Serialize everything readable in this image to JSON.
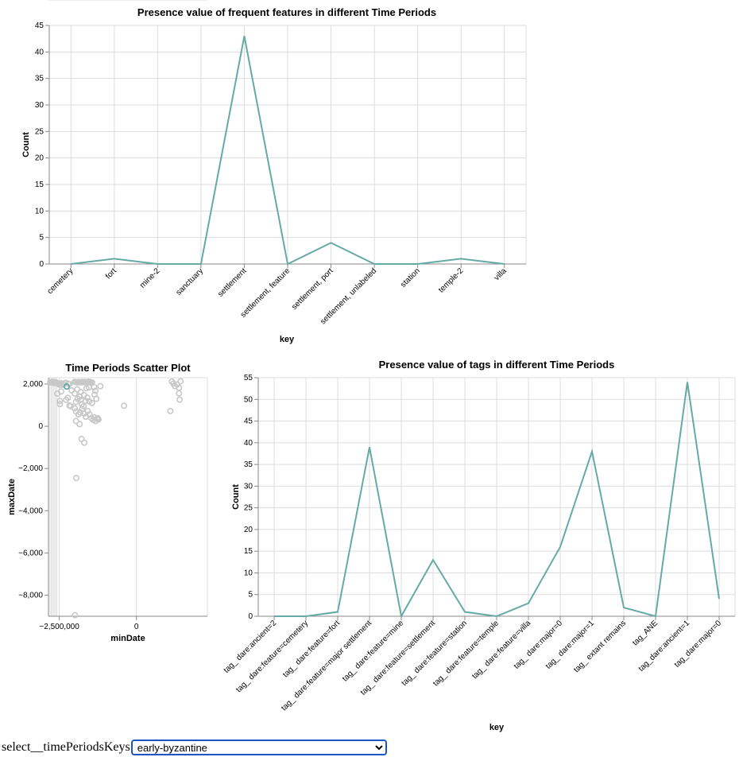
{
  "charts": {
    "features": {
      "type": "line",
      "title": "Presence value of frequent features in different Time Periods",
      "xlabel": "key",
      "ylabel": "Count",
      "categories": [
        "cemetery",
        "fort",
        "mine-2",
        "sanctuary",
        "settlement",
        "settlement, feature",
        "settlement, port",
        "settlement, unlabeled",
        "station",
        "temple-2",
        "villa"
      ],
      "values": [
        0,
        1,
        0,
        0,
        43,
        0,
        4,
        0,
        0,
        1,
        0
      ],
      "ylim": [
        0,
        45
      ],
      "yticks": [
        0,
        5,
        10,
        15,
        20,
        25,
        30,
        35,
        40,
        45
      ],
      "color": "#66aaa6",
      "grid": true
    },
    "scatter": {
      "type": "scatter",
      "title": "Time Periods Scatter Plot",
      "xlabel": "minDate",
      "ylabel": "maxDate",
      "xticks": [
        {
          "v": -2500000,
          "label": "−2,500,000"
        },
        {
          "v": 0,
          "label": "0"
        }
      ],
      "yticks": [
        {
          "v": 2000,
          "label": "2,000"
        },
        {
          "v": 0,
          "label": "0"
        },
        {
          "v": -2000,
          "label": "−2,000"
        },
        {
          "v": -4000,
          "label": "−4,000"
        },
        {
          "v": -6000,
          "label": "−6,000"
        },
        {
          "v": -8000,
          "label": "−8,000"
        }
      ],
      "xlim": [
        -2850000,
        2300000
      ],
      "ylim": [
        -9000,
        2300
      ],
      "color": "#c8c8c8",
      "highlight_color": "#66aaa6",
      "grid": true,
      "points": [
        [
          -2790000,
          2080
        ],
        [
          -2770000,
          2090
        ],
        [
          -2740000,
          2070
        ],
        [
          -2710000,
          2100
        ],
        [
          -2690000,
          2050
        ],
        [
          -2660000,
          2090
        ],
        [
          -2630000,
          2060
        ],
        [
          -2600000,
          2080
        ],
        [
          -2560000,
          2030
        ],
        [
          -2520000,
          2000
        ],
        [
          -2490000,
          1970
        ],
        [
          -2450000,
          2040
        ],
        [
          -2420000,
          1960
        ],
        [
          -2380000,
          2010
        ],
        [
          -2340000,
          1990
        ],
        [
          -2300000,
          2060
        ],
        [
          -2260000,
          1880
        ],
        [
          -2210000,
          2020
        ],
        [
          -2170000,
          2000
        ],
        [
          -2000000,
          2100
        ],
        [
          -1960000,
          2090
        ],
        [
          -1920000,
          2070
        ],
        [
          -1880000,
          2100
        ],
        [
          -1840000,
          2090
        ],
        [
          -1800000,
          2080
        ],
        [
          -1760000,
          2100
        ],
        [
          -1720000,
          2090
        ],
        [
          -1680000,
          2100
        ],
        [
          -1640000,
          2070
        ],
        [
          -1600000,
          2090
        ],
        [
          -1560000,
          2110
        ],
        [
          -1520000,
          2100
        ],
        [
          -1480000,
          2090
        ],
        [
          -1440000,
          2080
        ],
        [
          -2560000,
          1550
        ],
        [
          -2440000,
          1650
        ],
        [
          -2220000,
          1350
        ],
        [
          -2100000,
          1700
        ],
        [
          -2000000,
          1550
        ],
        [
          -1920000,
          1750
        ],
        [
          -1800000,
          1620
        ],
        [
          -1700000,
          1480
        ],
        [
          -1620000,
          1800
        ],
        [
          -1540000,
          1840
        ],
        [
          -2480000,
          1200
        ],
        [
          -2480000,
          1050
        ],
        [
          -2280000,
          1250
        ],
        [
          -2170000,
          980
        ],
        [
          -2130000,
          950
        ],
        [
          -1960000,
          1150
        ],
        [
          -1900000,
          1300
        ],
        [
          -1840000,
          1400
        ],
        [
          -1800000,
          1250
        ],
        [
          -1770000,
          1050
        ],
        [
          -1710000,
          950
        ],
        [
          -1650000,
          1200
        ],
        [
          -1590000,
          1350
        ],
        [
          -1530000,
          1180
        ],
        [
          -1440000,
          1100
        ],
        [
          -1360000,
          1500
        ],
        [
          -1300000,
          1300
        ],
        [
          -2000000,
          850
        ],
        [
          -1960000,
          700
        ],
        [
          -1880000,
          560
        ],
        [
          -1820000,
          650
        ],
        [
          -1760000,
          820
        ],
        [
          -1700000,
          600
        ],
        [
          -1640000,
          450
        ],
        [
          -1580000,
          720
        ],
        [
          -1520000,
          560
        ],
        [
          -1460000,
          380
        ],
        [
          -1400000,
          300
        ],
        [
          -1360000,
          420
        ],
        [
          -1320000,
          250
        ],
        [
          -1280000,
          350
        ],
        [
          -1250000,
          380
        ],
        [
          -1230000,
          320
        ],
        [
          -1960000,
          250
        ],
        [
          -1840000,
          100
        ],
        [
          -1780000,
          -600
        ],
        [
          -1690000,
          -780
        ],
        [
          -1950000,
          -2450
        ],
        [
          -1990000,
          -8950
        ],
        [
          -1170000,
          1900
        ],
        [
          -1330000,
          1680
        ],
        [
          -1370000,
          1850
        ],
        [
          -400000,
          970
        ],
        [
          1150000,
          2120
        ],
        [
          1200000,
          2020
        ],
        [
          1250000,
          1900
        ],
        [
          1320000,
          1980
        ],
        [
          1380000,
          1560
        ],
        [
          1400000,
          1260
        ],
        [
          1430000,
          2130
        ],
        [
          1380000,
          1820
        ],
        [
          1100000,
          720
        ]
      ],
      "highlight": [
        -2260000,
        1880
      ]
    },
    "tags": {
      "type": "line",
      "title": "Presence value of tags in different Time Periods",
      "xlabel": "key",
      "ylabel": "Count",
      "categories": [
        "tag_ dare:ancient=2",
        "tag_ dare:feature=cemetery",
        "tag_ dare:feature=fort",
        "tag_ dare:feature=major settlement",
        "tag_ dare:feature=mine",
        "tag_ dare:feature=settlement",
        "tag_ dare:feature=station",
        "tag_ dare:feature=temple",
        "tag_ dare:feature=villa",
        "tag_ dare:major=0",
        "tag_ dare:major=1",
        "tag_ extant remains",
        "tag_ANE",
        "tag_dare:ancient=1",
        "tag_dare:major=0"
      ],
      "values": [
        0,
        0,
        1,
        39,
        0,
        13,
        1,
        0,
        3,
        16,
        38,
        2,
        0,
        54,
        4
      ],
      "ylim": [
        0,
        55
      ],
      "yticks": [
        0,
        5,
        10,
        15,
        20,
        25,
        30,
        35,
        40,
        45,
        50,
        55
      ],
      "color": "#66aaa6",
      "grid": true
    }
  },
  "selector": {
    "label": "select__timePeriodsKeys",
    "value": "early-byzantine"
  }
}
